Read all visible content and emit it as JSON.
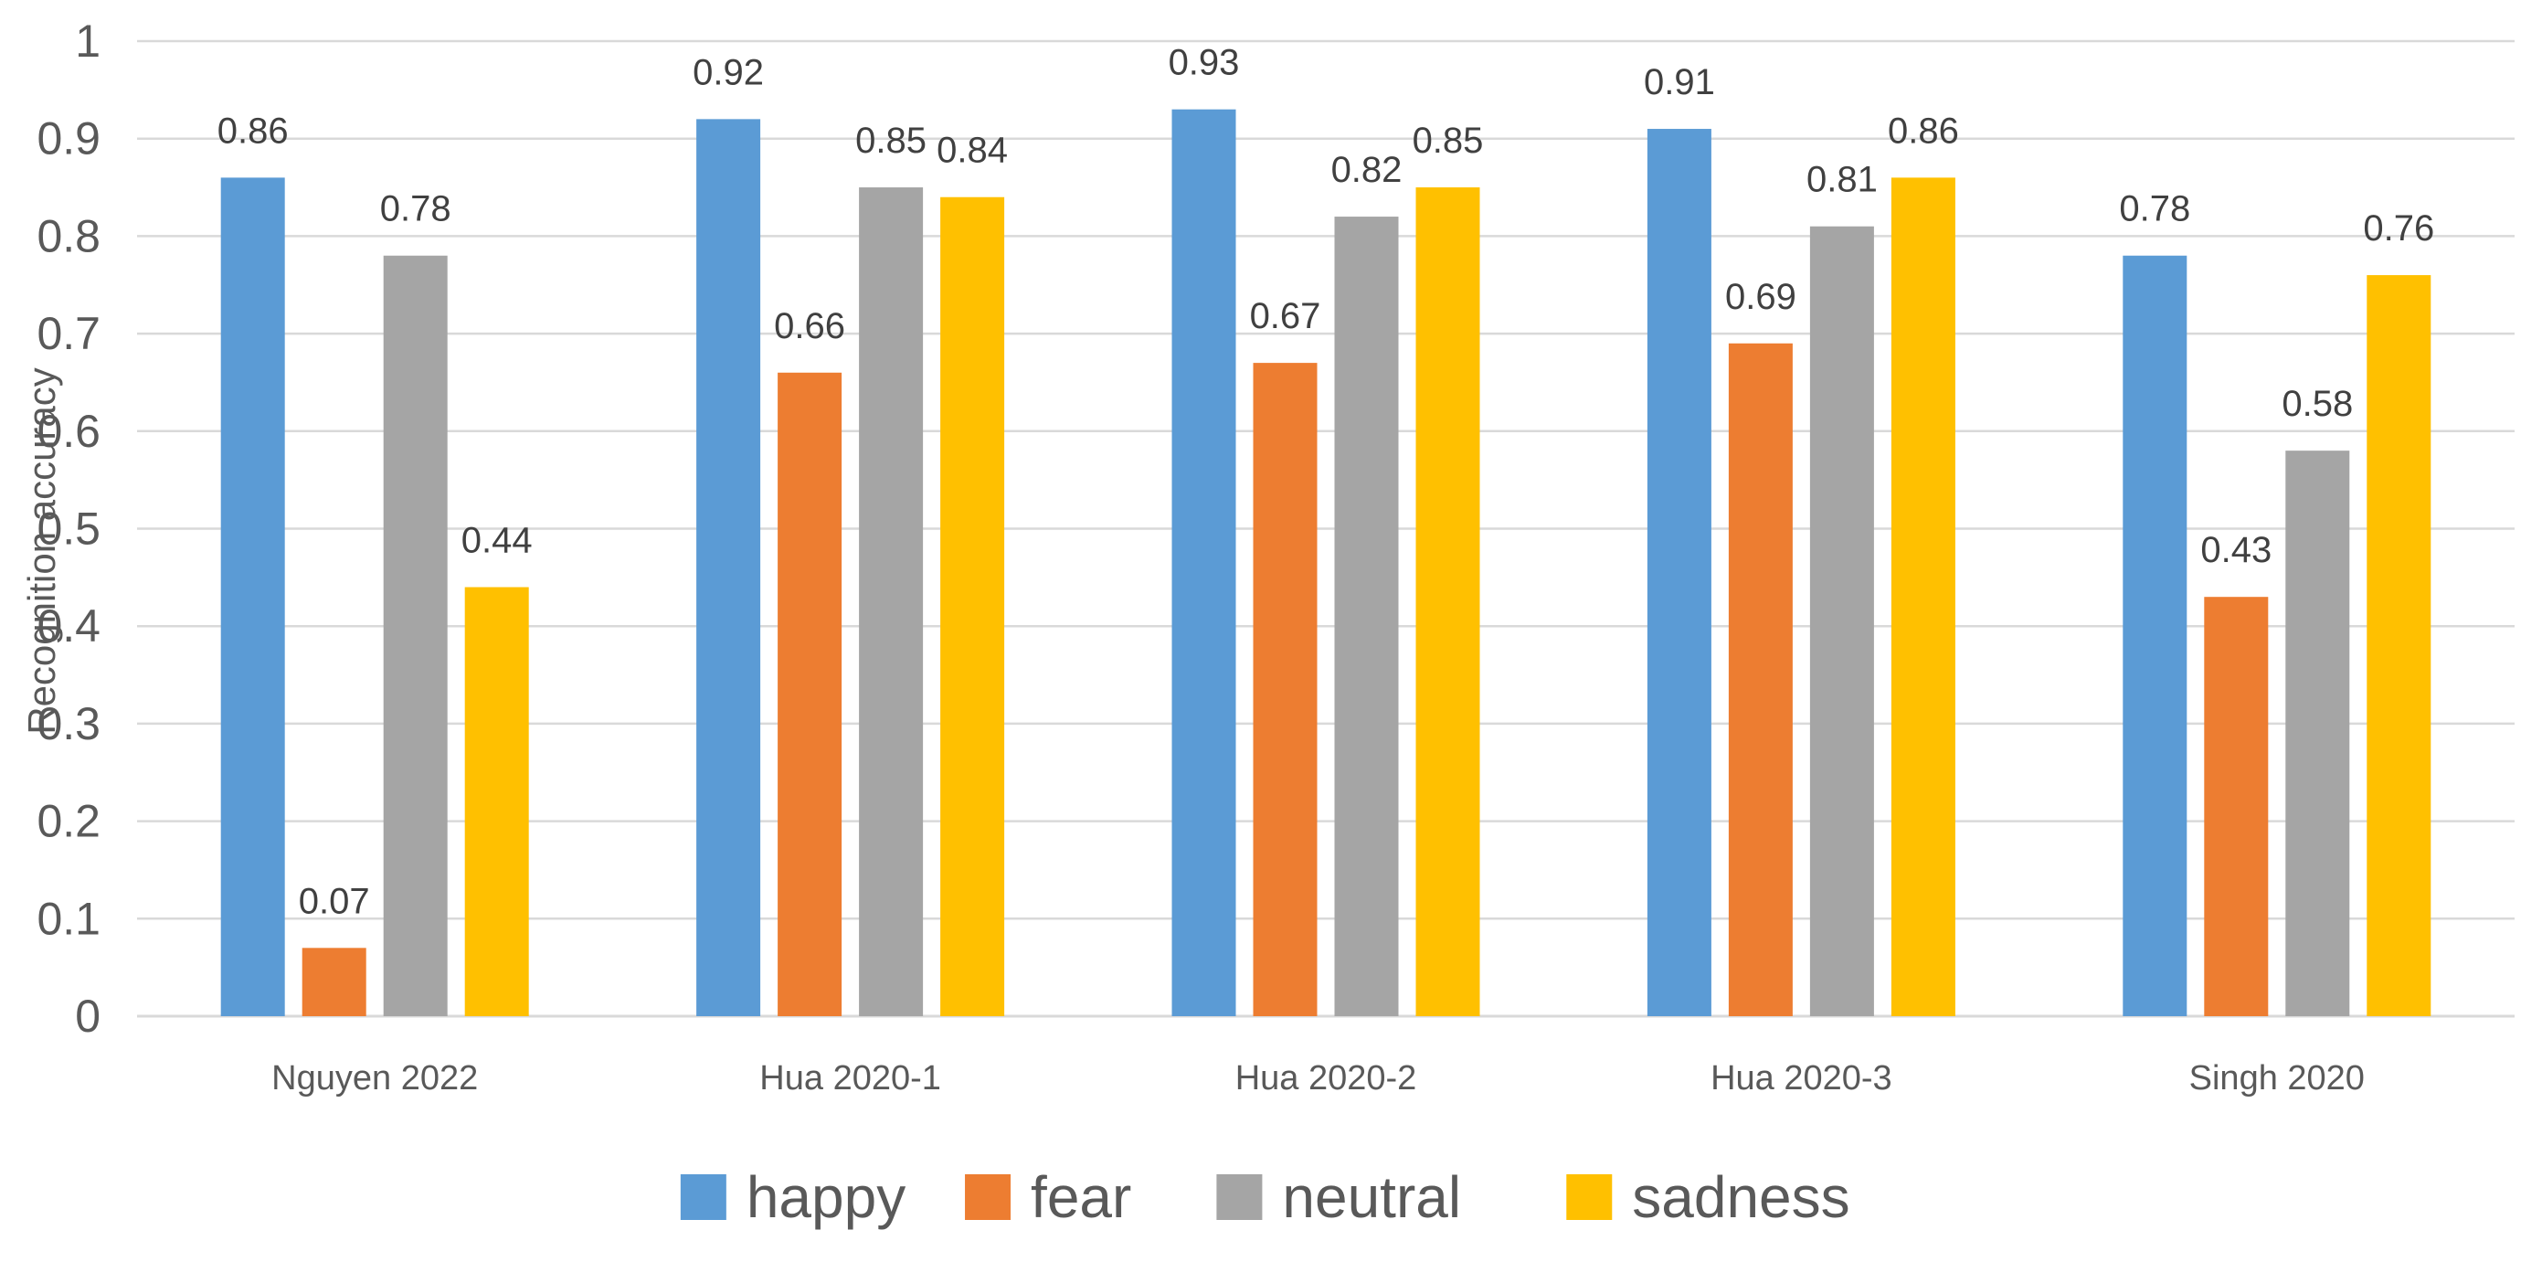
{
  "chart_data": {
    "type": "bar",
    "title": "",
    "xlabel": "",
    "ylabel": "Recognition accuracy",
    "ylim": [
      0,
      1
    ],
    "yticks": [
      0,
      0.1,
      0.2,
      0.3,
      0.4,
      0.5,
      0.6,
      0.7,
      0.8,
      0.9,
      1
    ],
    "ytick_labels": [
      "0",
      "0.1",
      "0.2",
      "0.3",
      "0.4",
      "0.5",
      "0.6",
      "0.7",
      "0.8",
      "0.9",
      "1"
    ],
    "grid": true,
    "legend_position": "bottom",
    "categories": [
      "Nguyen 2022",
      "Hua 2020-1",
      "Hua 2020-2",
      "Hua 2020-3",
      "Singh 2020"
    ],
    "series": [
      {
        "name": "happy",
        "color": "#5B9BD5",
        "values": [
          0.86,
          0.92,
          0.93,
          0.91,
          0.78
        ],
        "labels": [
          "0.86",
          "0.92",
          "0.93",
          "0.91",
          "0.78"
        ]
      },
      {
        "name": "fear",
        "color": "#ED7D31",
        "values": [
          0.07,
          0.66,
          0.67,
          0.69,
          0.43
        ],
        "labels": [
          "0.07",
          "0.66",
          "0.67",
          "0.69",
          "0.43"
        ]
      },
      {
        "name": "neutral",
        "color": "#A5A5A5",
        "values": [
          0.78,
          0.85,
          0.82,
          0.81,
          0.58
        ],
        "labels": [
          "0.78",
          "0.85",
          "0.82",
          "0.81",
          "0.58"
        ]
      },
      {
        "name": "sadness",
        "color": "#FFC000",
        "values": [
          0.44,
          0.84,
          0.85,
          0.86,
          0.76
        ],
        "labels": [
          "0.44",
          "0.84",
          "0.85",
          "0.86",
          "0.76"
        ]
      }
    ]
  }
}
